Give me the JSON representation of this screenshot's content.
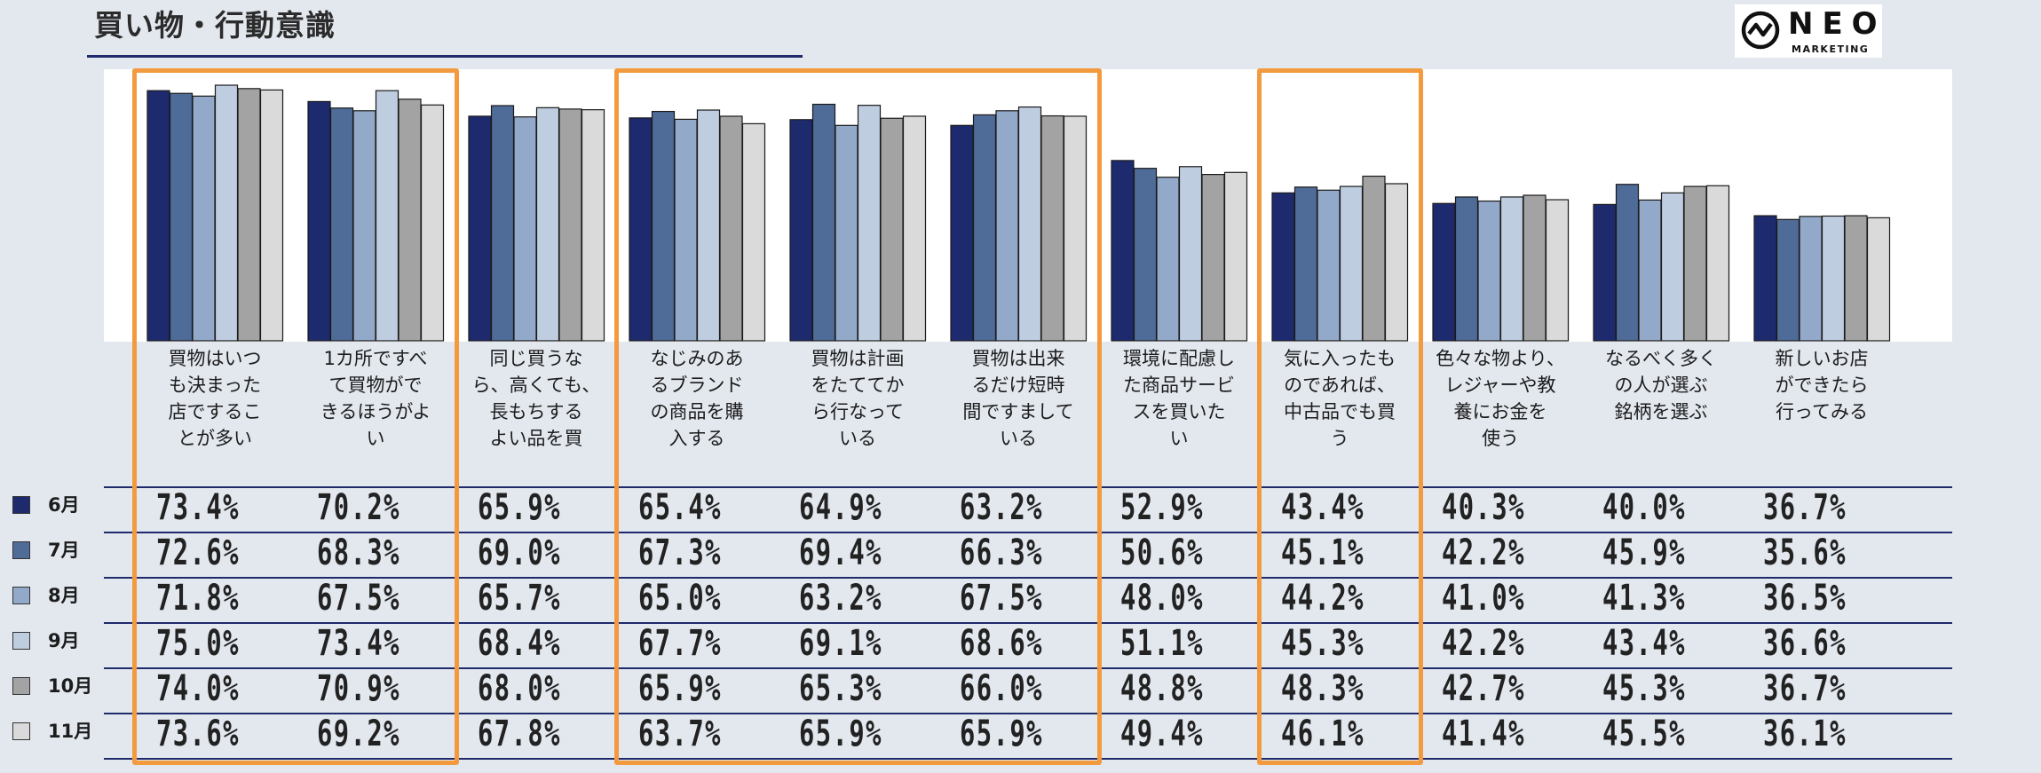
{
  "header": {
    "title": "買い物・行動意識"
  },
  "logo": {
    "word": "NEO",
    "sub": "MARKETING"
  },
  "colors": {
    "accent": "#f39a3f",
    "rule": "#1f2a6b",
    "series": [
      "#1e2a6e",
      "#4f6b98",
      "#93a9c9",
      "#bfcde0",
      "#a3a3a3",
      "#dadada"
    ]
  },
  "chart_data": {
    "type": "bar",
    "title": "",
    "xlabel": "",
    "ylabel": "",
    "ylim": [
      0,
      80
    ],
    "categories": [
      "買物はいつも決まった店ですることが多い",
      "1カ所ですべて買物ができるほうがよい",
      "同じ買うなら、高くても、長もちするよい品を買",
      "なじみのあるブランドの商品を購入する",
      "買物は計画をたててから行なっている",
      "買物は出来るだけ短時間ですましている",
      "環境に配慮した商品サービスを買いたい",
      "気に入ったものであれば、中古品でも買う",
      "色々な物より、レジャーや教養にお金を使う",
      "なるべく多くの人が選ぶ銘柄を選ぶ",
      "新しいお店ができたら行ってみる"
    ],
    "category_lines": [
      [
        "買物はいつ",
        "も決まった",
        "店でするこ",
        "とが多い"
      ],
      [
        "1カ所ですべ",
        "て買物がで",
        "きるほうがよ",
        "い"
      ],
      [
        "同じ買うな",
        "ら、高くても、",
        "長もちする",
        "よい品を買"
      ],
      [
        "なじみのあ",
        "るブランド",
        "の商品を購",
        "入する"
      ],
      [
        "買物は計画",
        "をたててか",
        "ら行なって",
        "いる"
      ],
      [
        "買物は出来",
        "るだけ短時",
        "間ですまして",
        "いる"
      ],
      [
        "環境に配慮し",
        "た商品サービ",
        "スを買いた",
        "い"
      ],
      [
        "気に入ったも",
        "のであれば、",
        "中古品でも買",
        "う"
      ],
      [
        "色々な物より、",
        "レジャーや教",
        "養にお金を",
        "使う"
      ],
      [
        "なるべく多く",
        "の人が選ぶ",
        "銘柄を選ぶ"
      ],
      [
        "新しいお店",
        "ができたら",
        "行ってみる"
      ]
    ],
    "series": [
      {
        "name": "6月",
        "values": [
          73.4,
          70.2,
          65.9,
          65.4,
          64.9,
          63.2,
          52.9,
          43.4,
          40.3,
          40.0,
          36.7
        ]
      },
      {
        "name": "7月",
        "values": [
          72.6,
          68.3,
          69.0,
          67.3,
          69.4,
          66.3,
          50.6,
          45.1,
          42.2,
          45.9,
          35.6
        ]
      },
      {
        "name": "8月",
        "values": [
          71.8,
          67.5,
          65.7,
          65.0,
          63.2,
          67.5,
          48.0,
          44.2,
          41.0,
          41.3,
          36.5
        ]
      },
      {
        "name": "9月",
        "values": [
          75.0,
          73.4,
          68.4,
          67.7,
          69.1,
          68.6,
          51.1,
          45.3,
          42.2,
          43.4,
          36.6
        ]
      },
      {
        "name": "10月",
        "values": [
          74.0,
          70.9,
          68.0,
          65.9,
          65.3,
          66.0,
          48.8,
          48.3,
          42.7,
          45.3,
          36.7
        ]
      },
      {
        "name": "11月",
        "values": [
          73.6,
          69.2,
          67.8,
          63.7,
          65.9,
          65.9,
          49.4,
          46.1,
          41.4,
          45.5,
          36.1
        ]
      }
    ],
    "table": [
      [
        "73.4%",
        "70.2%",
        "65.9%",
        "65.4%",
        "64.9%",
        "63.2%",
        "52.9%",
        "43.4%",
        "40.3%",
        "40.0%",
        "36.7%"
      ],
      [
        "72.6%",
        "68.3%",
        "69.0%",
        "67.3%",
        "69.4%",
        "66.3%",
        "50.6%",
        "45.1%",
        "42.2%",
        "45.9%",
        "35.6%"
      ],
      [
        "71.8%",
        "67.5%",
        "65.7%",
        "65.0%",
        "63.2%",
        "67.5%",
        "48.0%",
        "44.2%",
        "41.0%",
        "41.3%",
        "36.5%"
      ],
      [
        "75.0%",
        "73.4%",
        "68.4%",
        "67.7%",
        "69.1%",
        "68.6%",
        "51.1%",
        "45.3%",
        "42.2%",
        "43.4%",
        "36.6%"
      ],
      [
        "74.0%",
        "70.9%",
        "68.0%",
        "65.9%",
        "65.3%",
        "66.0%",
        "48.8%",
        "48.3%",
        "42.7%",
        "45.3%",
        "36.7%"
      ],
      [
        "73.6%",
        "69.2%",
        "67.8%",
        "63.7%",
        "65.9%",
        "65.9%",
        "49.4%",
        "46.1%",
        "41.4%",
        "45.5%",
        "36.1%"
      ]
    ],
    "highlighted_categories": [
      [
        0,
        1
      ],
      [
        3,
        5
      ],
      [
        7,
        7
      ]
    ],
    "grid": false,
    "legend": "left"
  }
}
